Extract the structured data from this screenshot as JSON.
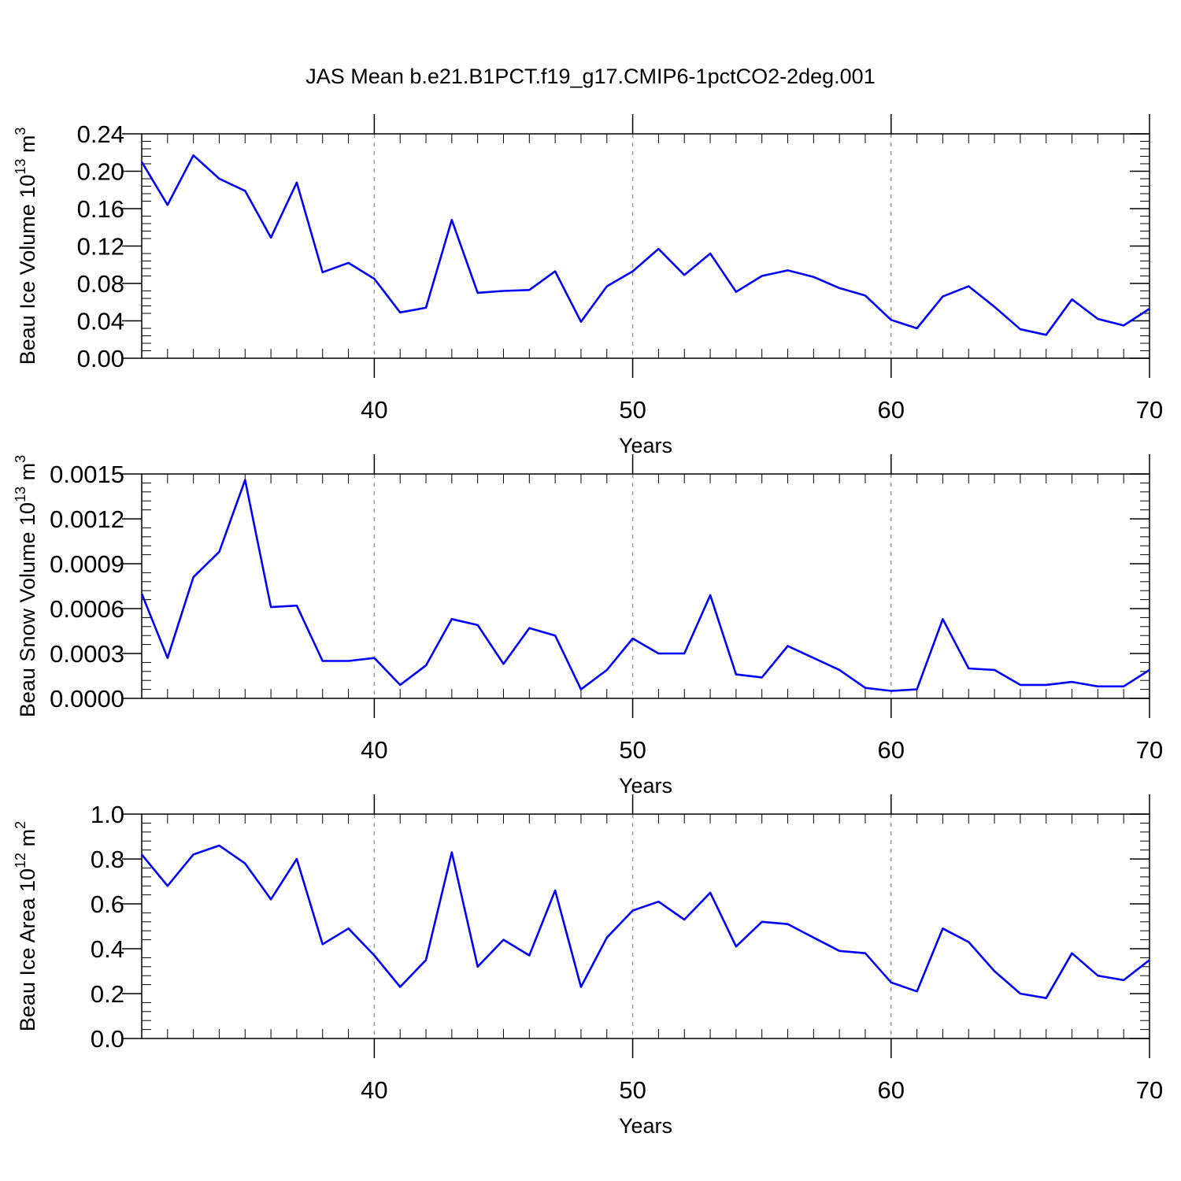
{
  "chart_data": {
    "type": "line",
    "title": "JAS Mean b.e21.B1PCT.f19_g17.CMIP6-1pctCO2-2deg.001",
    "x": [
      31,
      32,
      33,
      34,
      35,
      36,
      37,
      38,
      39,
      40,
      41,
      42,
      43,
      44,
      45,
      46,
      47,
      48,
      49,
      50,
      51,
      52,
      53,
      54,
      55,
      56,
      57,
      58,
      59,
      60,
      61,
      62,
      63,
      64,
      65,
      66,
      67,
      68,
      69,
      70
    ],
    "xlim": [
      31,
      70
    ],
    "xticks": [
      40,
      50,
      60,
      70
    ],
    "xtick_labels": [
      "40",
      "50",
      "60",
      "70"
    ],
    "line_color": "#0000ff",
    "grid": "dashed vertical lines at major x ticks",
    "panels": [
      {
        "ylabel_main": "Beau Ice Volume 10",
        "ylabel_sup": "13",
        "ylabel_unit": "m",
        "ylabel_unit_sup": "3",
        "xlabel": "Years",
        "ylim": [
          0,
          0.24
        ],
        "yticks": [
          0,
          0.04,
          0.08,
          0.12,
          0.16,
          0.2,
          0.24
        ],
        "ytick_labels": [
          "0.00",
          "0.04",
          "0.08",
          "0.12",
          "0.16",
          "0.20",
          "0.24"
        ],
        "values": [
          0.21,
          0.164,
          0.217,
          0.192,
          0.179,
          0.129,
          0.188,
          0.092,
          0.102,
          0.085,
          0.049,
          0.054,
          0.148,
          0.07,
          0.072,
          0.073,
          0.093,
          0.039,
          0.077,
          0.093,
          0.117,
          0.089,
          0.112,
          0.071,
          0.088,
          0.094,
          0.087,
          0.075,
          0.067,
          0.041,
          0.032,
          0.066,
          0.077,
          0.055,
          0.031,
          0.025,
          0.063,
          0.042,
          0.035,
          0.053
        ]
      },
      {
        "ylabel_main": "Beau Snow Volume 10",
        "ylabel_sup": "13",
        "ylabel_unit": "m",
        "ylabel_unit_sup": "3",
        "xlabel": "Years",
        "ylim": [
          0,
          0.0015
        ],
        "yticks": [
          0,
          0.0003,
          0.0006,
          0.0009,
          0.0012,
          0.0015
        ],
        "ytick_labels": [
          "0.0000",
          "0.0003",
          "0.0006",
          "0.0009",
          "0.0012",
          "0.0015"
        ],
        "values": [
          0.0007,
          0.00027,
          0.00081,
          0.00098,
          0.00146,
          0.00061,
          0.00062,
          0.00025,
          0.00025,
          0.00027,
          9e-05,
          0.00022,
          0.00053,
          0.00049,
          0.00023,
          0.00047,
          0.00042,
          6e-05,
          0.00019,
          0.0004,
          0.0003,
          0.0003,
          0.00069,
          0.00016,
          0.00014,
          0.00035,
          0.00027,
          0.00019,
          7e-05,
          5e-05,
          6e-05,
          0.00053,
          0.0002,
          0.00019,
          9e-05,
          9e-05,
          0.00011,
          8e-05,
          8e-05,
          0.00019
        ]
      },
      {
        "ylabel_main": "Beau Ice Area 10",
        "ylabel_sup": "12",
        "ylabel_unit": "m",
        "ylabel_unit_sup": "2",
        "xlabel": "Years",
        "ylim": [
          0,
          1.0
        ],
        "yticks": [
          0,
          0.2,
          0.4,
          0.6,
          0.8,
          1.0
        ],
        "ytick_labels": [
          "0.0",
          "0.2",
          "0.4",
          "0.6",
          "0.8",
          "1.0"
        ],
        "values": [
          0.82,
          0.68,
          0.82,
          0.86,
          0.78,
          0.62,
          0.8,
          0.42,
          0.49,
          0.37,
          0.23,
          0.35,
          0.83,
          0.32,
          0.44,
          0.37,
          0.66,
          0.23,
          0.45,
          0.57,
          0.61,
          0.53,
          0.65,
          0.41,
          0.52,
          0.51,
          0.45,
          0.39,
          0.38,
          0.25,
          0.21,
          0.49,
          0.43,
          0.3,
          0.2,
          0.18,
          0.38,
          0.28,
          0.26,
          0.35
        ]
      }
    ]
  }
}
